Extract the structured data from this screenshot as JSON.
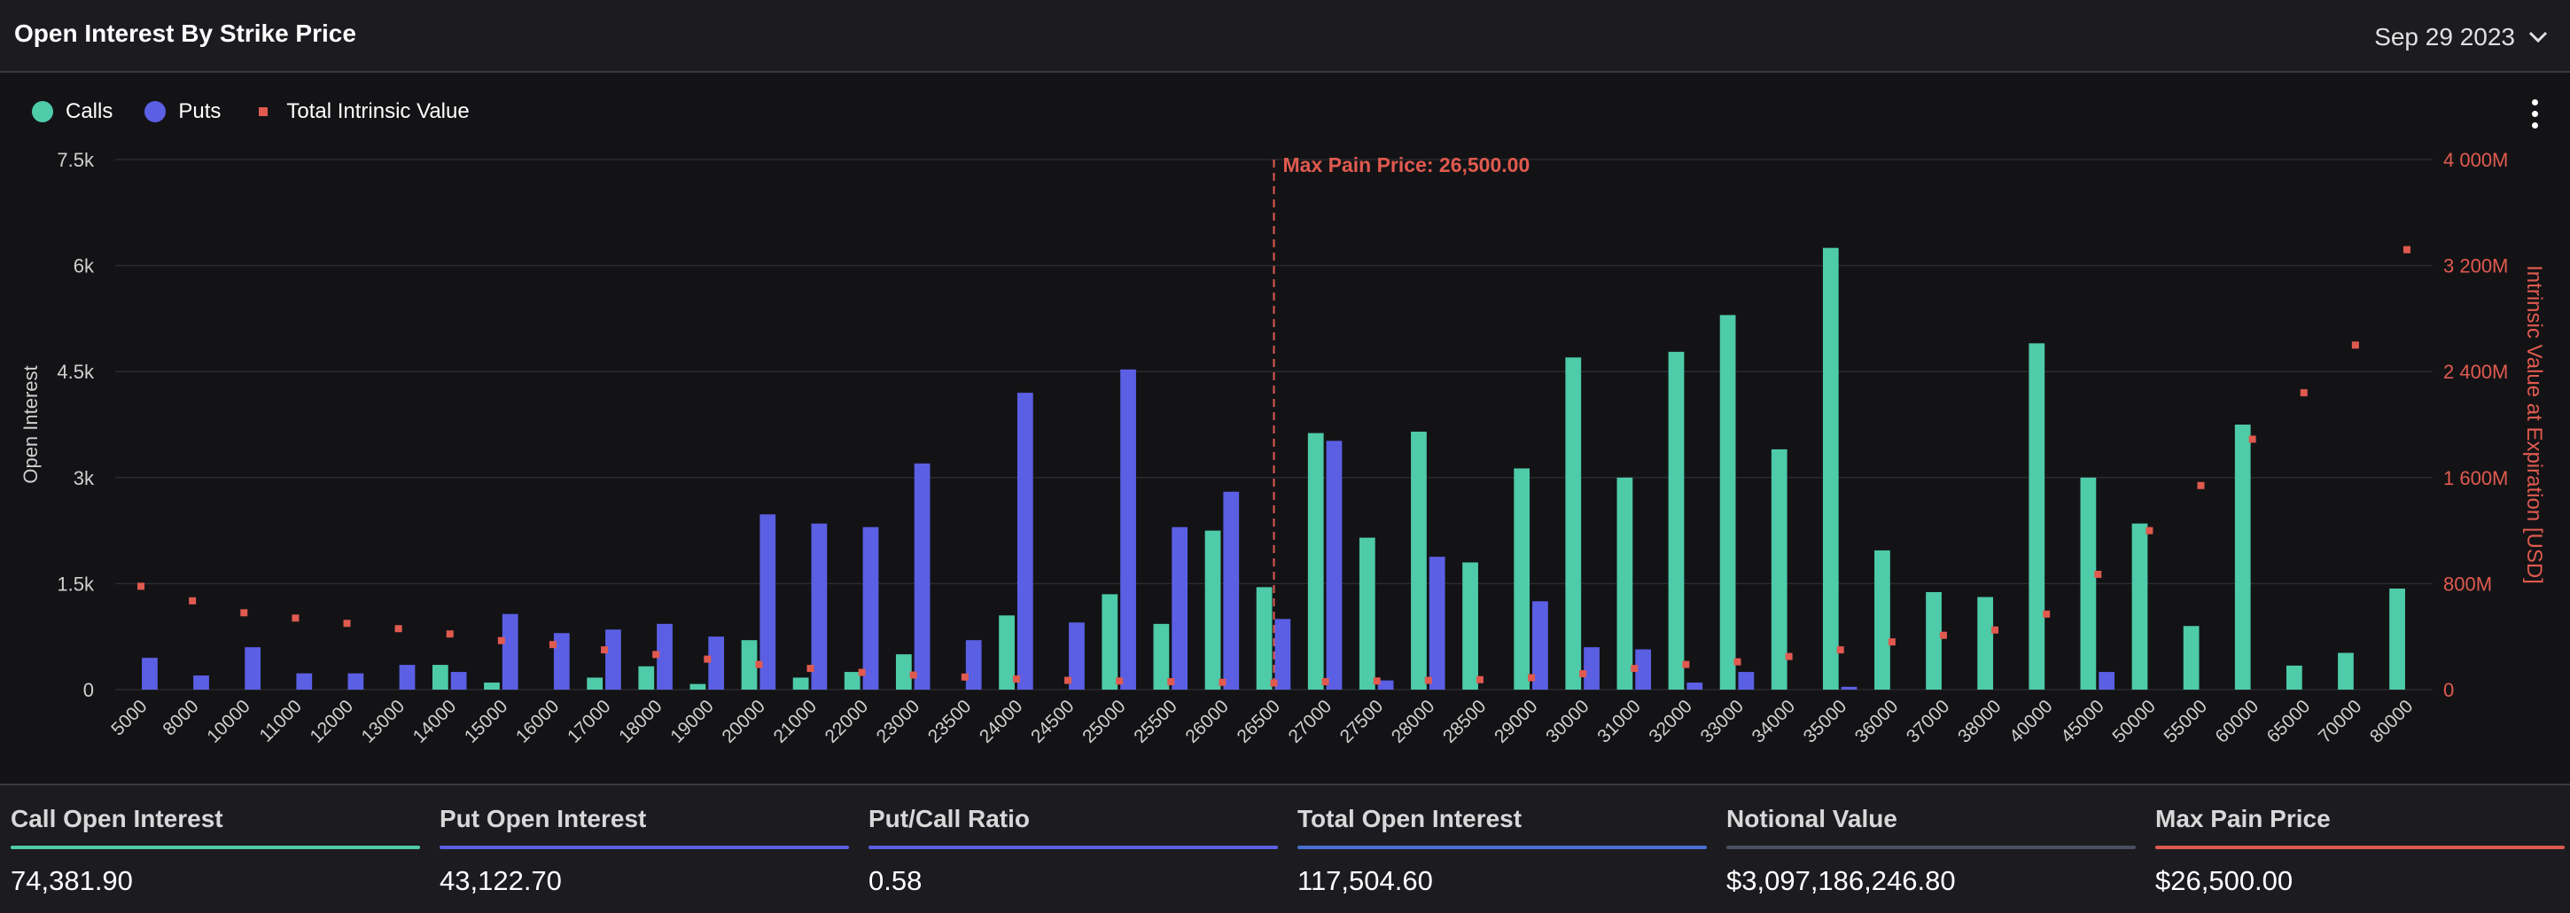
{
  "header": {
    "title": "Open Interest By Strike Price",
    "date_value": "Sep 29 2023"
  },
  "legend": {
    "items": [
      {
        "label": "Calls",
        "color": "#4ecba8",
        "shape": "circle"
      },
      {
        "label": "Puts",
        "color": "#5b5fe3",
        "shape": "circle"
      },
      {
        "label": "Total Intrinsic Value",
        "color": "#e05a4f",
        "shape": "square"
      }
    ]
  },
  "chart_data": {
    "type": "bar",
    "ylabel": "Open Interest",
    "y2label": "Intrinsic Value at Expiration [USD]",
    "ylim": [
      0,
      7500
    ],
    "y_ticks": [
      "0",
      "1.5k",
      "3k",
      "4.5k",
      "6k",
      "7.5k"
    ],
    "y_tick_values": [
      0,
      1500,
      3000,
      4500,
      6000,
      7500
    ],
    "y2lim": [
      0,
      4000
    ],
    "y2_ticks": [
      "0",
      "800M",
      "1 600M",
      "2 400M",
      "3 200M",
      "4 000M"
    ],
    "y2_tick_values": [
      0,
      800,
      1600,
      2400,
      3200,
      4000
    ],
    "y2_unit": "M USD",
    "grid": true,
    "categories": [
      "5000",
      "8000",
      "10000",
      "11000",
      "12000",
      "13000",
      "14000",
      "15000",
      "16000",
      "17000",
      "18000",
      "19000",
      "20000",
      "21000",
      "22000",
      "23000",
      "23500",
      "24000",
      "24500",
      "25000",
      "25500",
      "26000",
      "26500",
      "27000",
      "27500",
      "28000",
      "28500",
      "29000",
      "30000",
      "31000",
      "32000",
      "33000",
      "34000",
      "35000",
      "36000",
      "37000",
      "38000",
      "40000",
      "45000",
      "50000",
      "55000",
      "60000",
      "65000",
      "70000",
      "80000"
    ],
    "series": [
      {
        "name": "Calls",
        "color": "#4ecba8",
        "values": [
          0,
          0,
          0,
          0,
          0,
          0,
          350,
          100,
          0,
          170,
          330,
          80,
          700,
          170,
          250,
          500,
          0,
          1050,
          0,
          1350,
          930,
          2250,
          1450,
          3630,
          2150,
          3650,
          1800,
          3130,
          4700,
          3000,
          4780,
          5300,
          3400,
          6250,
          1970,
          1380,
          1310,
          4900,
          3000,
          2350,
          900,
          3750,
          340,
          520,
          1430
        ]
      },
      {
        "name": "Puts",
        "color": "#5b5fe3",
        "values": [
          450,
          200,
          600,
          230,
          230,
          350,
          250,
          1070,
          800,
          850,
          930,
          750,
          2480,
          2350,
          2300,
          3200,
          700,
          4200,
          950,
          4530,
          2300,
          2800,
          1000,
          3520,
          130,
          1880,
          0,
          1250,
          600,
          570,
          100,
          250,
          0,
          40,
          0,
          0,
          0,
          0,
          250,
          0,
          0,
          0,
          0,
          0,
          0
        ]
      },
      {
        "name": "Total Intrinsic Value",
        "color": "#e05a4f",
        "values": [
          780,
          670,
          580,
          540,
          500,
          460,
          420,
          370,
          340,
          300,
          265,
          230,
          190,
          160,
          130,
          110,
          95,
          80,
          70,
          65,
          60,
          55,
          50,
          60,
          65,
          70,
          75,
          90,
          120,
          160,
          190,
          210,
          250,
          300,
          360,
          410,
          450,
          570,
          870,
          1200,
          1540,
          1890,
          2240,
          2600,
          3320
        ]
      }
    ],
    "annotation": {
      "label": "Max Pain Price: 26,500.00",
      "category": "26500",
      "color": "#e05a4f"
    }
  },
  "stats": [
    {
      "label": "Call Open Interest",
      "value": "74,381.90",
      "color": "#4ecba8"
    },
    {
      "label": "Put Open Interest",
      "value": "43,122.70",
      "color": "#5b5fe3"
    },
    {
      "label": "Put/Call Ratio",
      "value": "0.58",
      "color": "#5b5fe3"
    },
    {
      "label": "Total Open Interest",
      "value": "117,504.60",
      "color": "#4a6fd0"
    },
    {
      "label": "Notional Value",
      "value": "$3,097,186,246.80",
      "color": "#4a5060"
    },
    {
      "label": "Max Pain Price",
      "value": "$26,500.00",
      "color": "#e05a4f"
    }
  ]
}
